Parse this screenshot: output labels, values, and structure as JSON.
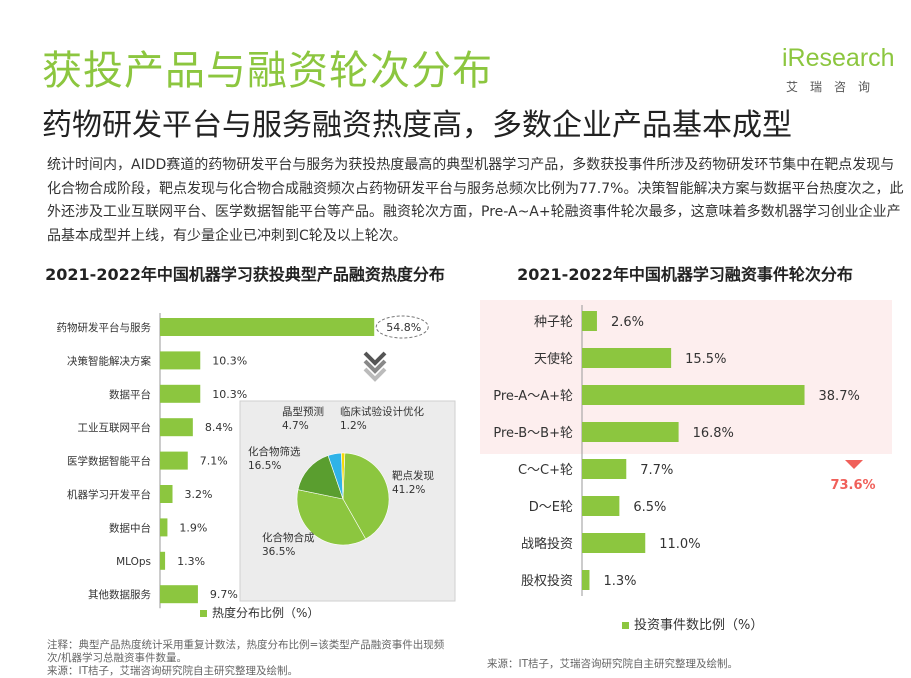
{
  "header": {
    "title": "获投产品与融资轮次分布",
    "subtitle": "药物研发平台与服务融资热度高，多数企业产品基本成型",
    "logo_text": "iResearch",
    "logo_sub": "艾瑞咨询"
  },
  "body_text": "统计时间内，AIDD赛道的药物研发平台与服务为获投热度最高的典型机器学习产品，多数获投事件所涉及药物研发环节集中在靶点发现与化合物合成阶段，靶点发现与化合物合成融资频次占药物研发平台与服务总频次比例为77.7%。决策智能解决方案与数据平台热度次之，此外还涉及工业互联网平台、医学数据智能平台等产品。融资轮次方面，Pre-A~A+轮融资事件轮次最多，这意味着多数机器学习创业企业产品基本成型并上线，有少量企业已冲刺到C轮及以上轮次。",
  "colors": {
    "accent": "#8cc63f",
    "dark_green": "#5a9e2f",
    "pie_blue": "#2fb3e8",
    "pie_yellow": "#f5d90a",
    "highlight_red": "#f0605a",
    "highlight_bg": "#fdeeee"
  },
  "notes": {
    "left": "注释：典型产品热度统计采用重复计数法，热度分布比例=该类型产品融资事件出现频次/机器学习总融资事件数量。\n来源：IT桔子，艾瑞咨询研究院自主研究整理及绘制。",
    "right": "来源：IT桔子，艾瑞咨询研究院自主研究整理及绘制。"
  },
  "chart_data": [
    {
      "type": "bar",
      "orientation": "horizontal",
      "title": "2021-2022年中国机器学习获投典型产品融资热度分布",
      "categories": [
        "药物研发平台与服务",
        "决策智能解决方案",
        "数据平台",
        "工业互联网平台",
        "医学数据智能平台",
        "机器学习开发平台",
        "数据中台",
        "MLOps",
        "其他数据服务"
      ],
      "values": [
        54.8,
        10.3,
        10.3,
        8.4,
        7.1,
        3.2,
        1.9,
        1.3,
        9.7
      ],
      "value_labels": [
        "54.8%",
        "10.3%",
        "10.3%",
        "8.4%",
        "7.1%",
        "3.2%",
        "1.9%",
        "1.3%",
        "9.7%"
      ],
      "legend": "热度分布比例（%）",
      "color": "#8cc63f"
    },
    {
      "type": "pie",
      "labels": [
        "靶点发现",
        "化合物合成",
        "化合物筛选",
        "晶型预测",
        "临床试验设计优化"
      ],
      "values": [
        41.2,
        36.5,
        16.5,
        4.7,
        1.2
      ],
      "value_labels": [
        "41.2%",
        "36.5%",
        "16.5%",
        "4.7%",
        "1.2%"
      ],
      "colors": [
        "#8cc63f",
        "#8cc63f",
        "#5a9e2f",
        "#2fb3e8",
        "#f5d90a"
      ]
    },
    {
      "type": "bar",
      "orientation": "horizontal",
      "title": "2021-2022年中国机器学习融资事件轮次分布",
      "categories": [
        "种子轮",
        "天使轮",
        "Pre-A～A+轮",
        "Pre-B～B+轮",
        "C～C+轮",
        "D～E轮",
        "战略投资",
        "股权投资"
      ],
      "values": [
        2.6,
        15.5,
        38.7,
        16.8,
        7.7,
        6.5,
        11.0,
        1.3
      ],
      "value_labels": [
        "2.6%",
        "15.5%",
        "38.7%",
        "16.8%",
        "7.7%",
        "6.5%",
        "11.0%",
        "1.3%"
      ],
      "highlight_label": "73.6%",
      "legend": "投资事件数比例（%）",
      "color": "#8cc63f"
    }
  ]
}
